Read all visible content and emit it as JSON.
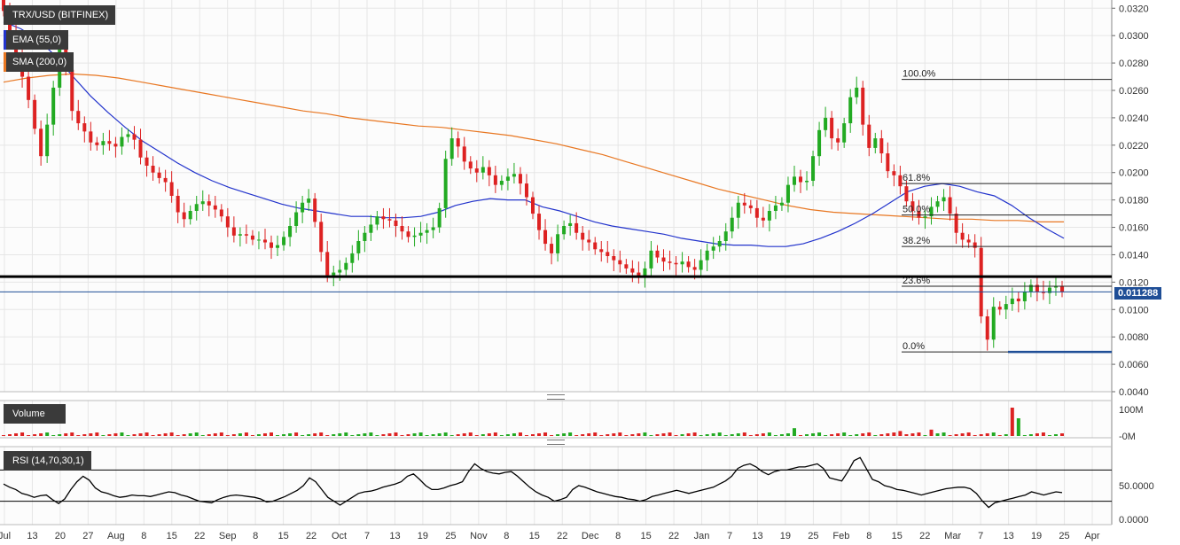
{
  "legend": {
    "symbol": "TRX/USD (BITFINEX)",
    "ema": {
      "label": "EMA (55,0)",
      "color": "#2233cc"
    },
    "sma": {
      "label": "SMA (200,0)",
      "color": "#e87722"
    }
  },
  "volume_panel": {
    "label": "Volume",
    "ticks": [
      "100M",
      "-0M"
    ]
  },
  "rsi_panel": {
    "label": "RSI (14,70,30,1)",
    "ticks": [
      "50.0000",
      "0.0000"
    ]
  },
  "current_price": "0.011288",
  "colors": {
    "up": "#22aa22",
    "down": "#dd2222",
    "ema": "#2233cc",
    "sma": "#e87722",
    "grid": "#e6e6e6",
    "tag": "#1f4e96"
  },
  "chart_data": {
    "type": "candlestick",
    "title": "TRX/USD (BITFINEX)",
    "price_axis": {
      "range": [
        0.004,
        0.0326
      ],
      "ticks": [
        "0.0320",
        "0.0300",
        "0.0280",
        "0.0260",
        "0.0240",
        "0.0220",
        "0.0200",
        "0.0180",
        "0.0160",
        "0.0140",
        "0.0120",
        "0.0100",
        "0.0080",
        "0.0060",
        "0.0040"
      ]
    },
    "x_axis": {
      "ticks": [
        "Jul",
        "13",
        "20",
        "27",
        "Aug",
        "8",
        "15",
        "22",
        "Sep",
        "8",
        "15",
        "22",
        "Oct",
        "7",
        "13",
        "19",
        "25",
        "Nov",
        "8",
        "15",
        "22",
        "Dec",
        "8",
        "15",
        "22",
        "Jan",
        "7",
        "13",
        "19",
        "25",
        "Feb",
        "8",
        "15",
        "22",
        "Mar",
        "7",
        "13",
        "19",
        "25",
        "Apr"
      ]
    },
    "close_series": [
      0.0318,
      0.03,
      0.0285,
      0.027,
      0.0253,
      0.0232,
      0.0212,
      0.0235,
      0.0262,
      0.0294,
      0.0275,
      0.0245,
      0.0236,
      0.023,
      0.0222,
      0.022,
      0.0223,
      0.0221,
      0.0219,
      0.0226,
      0.0228,
      0.0224,
      0.0211,
      0.0205,
      0.02,
      0.0196,
      0.0193,
      0.0183,
      0.0171,
      0.0166,
      0.0172,
      0.0177,
      0.0179,
      0.0176,
      0.0173,
      0.0168,
      0.016,
      0.0154,
      0.0155,
      0.0154,
      0.0151,
      0.0151,
      0.0149,
      0.0145,
      0.0147,
      0.0153,
      0.0161,
      0.0171,
      0.0178,
      0.0181,
      0.0164,
      0.0142,
      0.0125,
      0.0127,
      0.0129,
      0.0134,
      0.0141,
      0.015,
      0.0156,
      0.0162,
      0.0168,
      0.0166,
      0.0165,
      0.0161,
      0.0157,
      0.0153,
      0.0154,
      0.0156,
      0.0158,
      0.016,
      0.0174,
      0.021,
      0.0225,
      0.0219,
      0.0208,
      0.0203,
      0.02,
      0.0204,
      0.0198,
      0.0191,
      0.0194,
      0.0197,
      0.0199,
      0.0192,
      0.0182,
      0.017,
      0.0158,
      0.0148,
      0.0141,
      0.0155,
      0.0161,
      0.0163,
      0.0156,
      0.0151,
      0.0149,
      0.0144,
      0.0142,
      0.0139,
      0.0136,
      0.0133,
      0.013,
      0.0127,
      0.0124,
      0.013,
      0.0143,
      0.0138,
      0.0135,
      0.0134,
      0.0133,
      0.0135,
      0.0131,
      0.0129,
      0.0136,
      0.0143,
      0.0146,
      0.015,
      0.0157,
      0.0167,
      0.0178,
      0.0176,
      0.0174,
      0.0167,
      0.0165,
      0.0172,
      0.0176,
      0.0178,
      0.0191,
      0.0197,
      0.0193,
      0.0194,
      0.0212,
      0.0231,
      0.024,
      0.0225,
      0.0222,
      0.0236,
      0.0255,
      0.0262,
      0.0235,
      0.0218,
      0.0225,
      0.0214,
      0.0201,
      0.0198,
      0.019,
      0.0179,
      0.0172,
      0.0167,
      0.0168,
      0.0175,
      0.0179,
      0.0182,
      0.017,
      0.0156,
      0.0151,
      0.0149,
      0.0145,
      0.0095,
      0.0078,
      0.0102,
      0.01,
      0.0104,
      0.0108,
      0.0106,
      0.0113,
      0.0118,
      0.0113,
      0.0112,
      0.0116,
      0.0117,
      0.0113
    ],
    "ema_series": [
      0.031,
      0.0305,
      0.0297,
      0.0285,
      0.027,
      0.0256,
      0.0244,
      0.0233,
      0.0223,
      0.0215,
      0.0207,
      0.02,
      0.0194,
      0.0189,
      0.0185,
      0.0181,
      0.0177,
      0.0174,
      0.0172,
      0.017,
      0.0168,
      0.0168,
      0.0167,
      0.0167,
      0.0168,
      0.0171,
      0.0176,
      0.0179,
      0.0181,
      0.018,
      0.018,
      0.0175,
      0.0172,
      0.0168,
      0.0164,
      0.0161,
      0.0159,
      0.0157,
      0.0155,
      0.0152,
      0.015,
      0.0148,
      0.0147,
      0.0147,
      0.0146,
      0.0146,
      0.0148,
      0.0152,
      0.0157,
      0.0163,
      0.017,
      0.0178,
      0.0186,
      0.019,
      0.0192,
      0.019,
      0.0186,
      0.0183,
      0.0176,
      0.0167,
      0.0159,
      0.0152
    ],
    "sma_series": [
      0.0266,
      0.0269,
      0.0271,
      0.0272,
      0.0271,
      0.0269,
      0.0266,
      0.0263,
      0.026,
      0.0257,
      0.0254,
      0.0251,
      0.0248,
      0.0245,
      0.0243,
      0.024,
      0.0238,
      0.0236,
      0.0234,
      0.0233,
      0.0231,
      0.0229,
      0.0227,
      0.0224,
      0.0221,
      0.0217,
      0.0213,
      0.0208,
      0.0203,
      0.0198,
      0.0193,
      0.0188,
      0.0184,
      0.018,
      0.0176,
      0.0173,
      0.0171,
      0.017,
      0.0169,
      0.0168,
      0.0167,
      0.0166,
      0.0166,
      0.0165,
      0.0165,
      0.0164,
      0.0164
    ],
    "fibonacci": {
      "levels": [
        {
          "label": "100.0%",
          "price": 0.0268
        },
        {
          "label": "61.8%",
          "price": 0.0192
        },
        {
          "label": "50.0%",
          "price": 0.0169
        },
        {
          "label": "38.2%",
          "price": 0.0146
        },
        {
          "label": "23.6%",
          "price": 0.0117
        },
        {
          "label": "0.0%",
          "price": 0.0069
        }
      ]
    },
    "horizontal_lines": [
      {
        "price": 0.0124,
        "style": "support-resistance"
      },
      {
        "price": 0.0069,
        "style": "low-marker"
      },
      {
        "price": 0.01129,
        "style": "current-price"
      }
    ],
    "rsi": {
      "bands": [
        70,
        30
      ],
      "series": [
        52,
        48,
        45,
        40,
        38,
        35,
        37,
        38,
        32,
        27,
        33,
        45,
        55,
        62,
        57,
        47,
        42,
        40,
        37,
        35,
        36,
        38,
        37,
        37,
        36,
        38,
        40,
        42,
        41,
        38,
        36,
        33,
        30,
        29,
        28,
        32,
        35,
        37,
        38,
        37,
        36,
        35,
        33,
        29,
        30,
        33,
        36,
        40,
        44,
        50,
        60,
        55,
        45,
        35,
        30,
        25,
        30,
        35,
        40,
        42,
        43,
        45,
        48,
        50,
        52,
        55,
        62,
        65,
        58,
        50,
        45,
        45,
        47,
        50,
        52,
        55,
        68,
        78,
        72,
        68,
        66,
        65,
        67,
        68,
        62,
        55,
        48,
        42,
        38,
        35,
        30,
        32,
        35,
        45,
        50,
        48,
        45,
        42,
        40,
        38,
        36,
        35,
        33,
        32,
        30,
        32,
        36,
        38,
        40,
        42,
        44,
        42,
        40,
        42,
        44,
        46,
        48,
        52,
        56,
        62,
        72,
        76,
        78,
        74,
        68,
        64,
        68,
        70,
        70,
        72,
        74,
        74,
        76,
        78,
        72,
        60,
        58,
        56,
        68,
        82,
        86,
        72,
        58,
        55,
        50,
        48,
        45,
        44,
        42,
        40,
        38,
        40,
        42,
        44,
        46,
        47,
        48,
        48,
        46,
        40,
        30,
        22,
        28,
        30,
        32,
        34,
        36,
        38,
        42,
        40,
        38,
        40,
        42,
        41
      ],
      "ticks": [
        "50.0000",
        "0.0000"
      ]
    },
    "volume": {
      "spikes": [
        {
          "index": 47,
          "value": 10,
          "dir": "down"
        },
        {
          "index": 127,
          "value": 22,
          "dir": "up"
        },
        {
          "index": 144,
          "value": 14,
          "dir": "down"
        },
        {
          "index": 149,
          "value": 18,
          "dir": "down"
        },
        {
          "index": 162,
          "value": 95,
          "dir": "down"
        },
        {
          "index": 163,
          "value": 50,
          "dir": "up"
        }
      ]
    }
  }
}
